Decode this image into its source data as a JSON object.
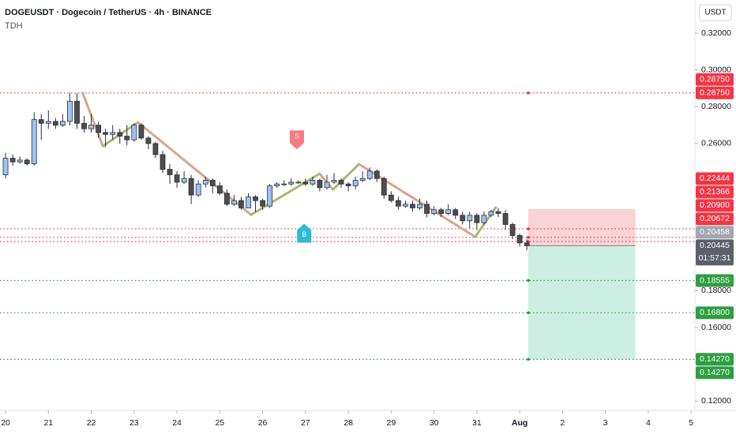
{
  "chart_data": {
    "type": "candlestick",
    "title": "DOGEUSDT · Dogecoin / TetherUS · 4h · BINANCE",
    "subtitle": "TDH",
    "currency": "USDT",
    "xlim": [
      19.87,
      36.09
    ],
    "xticks": [
      20,
      21,
      22,
      23,
      24,
      25,
      26,
      27,
      28,
      29,
      30,
      31,
      {
        "value": 32,
        "label": "Aug"
      },
      {
        "value": 33,
        "label": "2"
      },
      {
        "value": 34,
        "label": "3"
      },
      {
        "value": 35,
        "label": "4"
      },
      {
        "value": 36,
        "label": "5"
      }
    ],
    "ylim": [
      0.115,
      0.338
    ],
    "yticks": [
      {
        "value": 0.12,
        "label": "0.12000"
      },
      {
        "value": 0.16,
        "label": "0.16000"
      },
      {
        "value": 0.18,
        "label": "0.18000"
      },
      {
        "value": 0.26,
        "label": "0.26000"
      },
      {
        "value": 0.28,
        "label": "0.28000"
      },
      {
        "value": 0.3,
        "label": "0.30000"
      },
      {
        "value": 0.32,
        "label": "0.32000"
      }
    ],
    "grid": false,
    "up_color": "#9ec3f5",
    "down_color": "#4d4d4d",
    "wick_color": "#2a2e39",
    "candles": {
      "x": [
        20,
        20.167,
        20.333,
        20.5,
        20.667,
        20.833,
        21,
        21.167,
        21.333,
        21.5,
        21.667,
        21.833,
        22,
        22.167,
        22.333,
        22.5,
        22.667,
        22.833,
        23,
        23.167,
        23.333,
        23.5,
        23.667,
        23.833,
        24,
        24.167,
        24.333,
        24.5,
        24.667,
        24.833,
        25,
        25.167,
        25.333,
        25.5,
        25.667,
        25.833,
        26,
        26.167,
        26.333,
        26.5,
        26.667,
        26.833,
        27,
        27.167,
        27.333,
        27.5,
        27.667,
        27.833,
        28,
        28.167,
        28.333,
        28.5,
        28.667,
        28.833,
        29,
        29.167,
        29.333,
        29.5,
        29.667,
        29.833,
        30,
        30.167,
        30.333,
        30.5,
        30.667,
        30.833,
        31,
        31.167,
        31.333,
        31.5,
        31.667,
        31.833,
        32,
        32.167
      ],
      "open": [
        0.243,
        0.252,
        0.25,
        0.251,
        0.249,
        0.273,
        0.271,
        0.272,
        0.27,
        0.272,
        0.283,
        0.271,
        0.268,
        0.27,
        0.266,
        0.265,
        0.266,
        0.264,
        0.262,
        0.27,
        0.263,
        0.26,
        0.254,
        0.246,
        0.243,
        0.239,
        0.241,
        0.232,
        0.238,
        0.24,
        0.237,
        0.233,
        0.227,
        0.229,
        0.225,
        0.231,
        0.229,
        0.226,
        0.237,
        0.238,
        0.238,
        0.239,
        0.239,
        0.238,
        0.24,
        0.236,
        0.239,
        0.24,
        0.238,
        0.237,
        0.24,
        0.241,
        0.245,
        0.241,
        0.232,
        0.229,
        0.226,
        0.227,
        0.225,
        0.227,
        0.222,
        0.224,
        0.222,
        0.224,
        0.221,
        0.218,
        0.221,
        0.217,
        0.221,
        0.223,
        0.222,
        0.216,
        0.21,
        0.206
      ],
      "high": [
        0.255,
        0.254,
        0.253,
        0.252,
        0.277,
        0.276,
        0.278,
        0.274,
        0.276,
        0.2875,
        0.2875,
        0.275,
        0.276,
        0.272,
        0.268,
        0.27,
        0.268,
        0.27,
        0.271,
        0.271,
        0.264,
        0.261,
        0.256,
        0.249,
        0.245,
        0.245,
        0.243,
        0.24,
        0.242,
        0.241,
        0.239,
        0.235,
        0.232,
        0.231,
        0.233,
        0.232,
        0.23,
        0.238,
        0.239,
        0.24,
        0.241,
        0.24,
        0.241,
        0.242,
        0.241,
        0.243,
        0.244,
        0.241,
        0.239,
        0.242,
        0.245,
        0.247,
        0.246,
        0.242,
        0.234,
        0.231,
        0.229,
        0.229,
        0.23,
        0.229,
        0.226,
        0.225,
        0.227,
        0.225,
        0.223,
        0.223,
        0.222,
        0.223,
        0.224,
        0.225,
        0.224,
        0.217,
        0.211,
        0.208
      ],
      "low": [
        0.241,
        0.248,
        0.249,
        0.248,
        0.248,
        0.262,
        0.268,
        0.268,
        0.269,
        0.27,
        0.268,
        0.266,
        0.266,
        0.263,
        0.258,
        0.262,
        0.26,
        0.259,
        0.261,
        0.262,
        0.257,
        0.252,
        0.244,
        0.238,
        0.236,
        0.238,
        0.227,
        0.231,
        0.236,
        0.233,
        0.232,
        0.226,
        0.226,
        0.224,
        0.225,
        0.223,
        0.224,
        0.225,
        0.236,
        0.237,
        0.237,
        0.238,
        0.237,
        0.237,
        0.234,
        0.235,
        0.238,
        0.236,
        0.234,
        0.235,
        0.239,
        0.24,
        0.239,
        0.23,
        0.228,
        0.224,
        0.225,
        0.223,
        0.224,
        0.22,
        0.221,
        0.22,
        0.221,
        0.219,
        0.216,
        0.214,
        0.213,
        0.216,
        0.22,
        0.22,
        0.213,
        0.208,
        0.204,
        0.202
      ],
      "close": [
        0.252,
        0.25,
        0.251,
        0.249,
        0.273,
        0.271,
        0.272,
        0.27,
        0.272,
        0.283,
        0.271,
        0.268,
        0.27,
        0.266,
        0.265,
        0.266,
        0.264,
        0.262,
        0.27,
        0.263,
        0.26,
        0.254,
        0.246,
        0.243,
        0.239,
        0.241,
        0.232,
        0.238,
        0.24,
        0.237,
        0.233,
        0.227,
        0.229,
        0.225,
        0.231,
        0.229,
        0.226,
        0.237,
        0.238,
        0.238,
        0.239,
        0.239,
        0.238,
        0.24,
        0.236,
        0.239,
        0.24,
        0.238,
        0.237,
        0.24,
        0.241,
        0.245,
        0.241,
        0.232,
        0.229,
        0.226,
        0.227,
        0.225,
        0.227,
        0.222,
        0.224,
        0.222,
        0.224,
        0.221,
        0.218,
        0.221,
        0.217,
        0.221,
        0.223,
        0.222,
        0.216,
        0.21,
        0.206,
        0.20445
      ]
    },
    "zigzag": {
      "x": [
        21.8,
        22.27,
        23.09,
        25.73,
        27.33,
        27.64,
        28.25,
        30.96,
        31.44
      ],
      "y": [
        0.2875,
        0.2586,
        0.2715,
        0.2213,
        0.2436,
        0.235,
        0.2488,
        0.2093,
        0.2252
      ],
      "up_color": "#a9b86d",
      "down_color": "#d9a58c"
    },
    "markers": [
      {
        "label": "S",
        "x": 26.8,
        "y": 0.262,
        "color": "#f77c80"
      },
      {
        "label": "B",
        "x": 26.97,
        "y": 0.213,
        "color": "#2bbbd8"
      }
    ],
    "levels": [
      {
        "value": 0.2875,
        "color": "#f23645"
      },
      {
        "value": 0.21366,
        "color": "#f23645"
      },
      {
        "value": 0.209,
        "color": "#f23645"
      },
      {
        "value": 0.20672,
        "color": "#f23645"
      },
      {
        "value": 0.18555,
        "color": "#2e9e41"
      },
      {
        "value": 0.168,
        "color": "#2e9e41"
      },
      {
        "value": 0.1427,
        "color": "#2e9e41"
      }
    ],
    "position": {
      "entry": 0.20445,
      "stop": 0.22444,
      "target": 0.1427,
      "x_start": 32.2,
      "x_end": 34.7,
      "stop_color": "#f9d3d6",
      "target_color": "#cdeee3"
    },
    "last_price": {
      "value": 0.20445,
      "label": "0.20445",
      "countdown": "01:57:31",
      "color": "#5d606b"
    },
    "price_tags": [
      {
        "value": 0.2875,
        "label": "0.28750",
        "color": "#f23645"
      },
      {
        "value": 0.2875,
        "label": "0.28750",
        "color": "#f23645"
      },
      {
        "value": 0.22444,
        "label": "0.22444",
        "color": "#f23645"
      },
      {
        "value": 0.21366,
        "label": "0.21366",
        "color": "#f23645"
      },
      {
        "value": 0.209,
        "label": "0.20900",
        "color": "#f23645"
      },
      {
        "value": 0.20672,
        "label": "0.20672",
        "color": "#f23645"
      },
      {
        "value": 0.20458,
        "label": "0.20458",
        "color": "#a3a6af"
      },
      {
        "value": 0.18555,
        "label": "0.18555",
        "color": "#2e9e41"
      },
      {
        "value": 0.168,
        "label": "0.16800",
        "color": "#2e9e41"
      },
      {
        "value": 0.1427,
        "label": "0.14270",
        "color": "#2e9e41"
      },
      {
        "value": 0.1427,
        "label": "0.14270",
        "color": "#2e9e41"
      }
    ]
  }
}
